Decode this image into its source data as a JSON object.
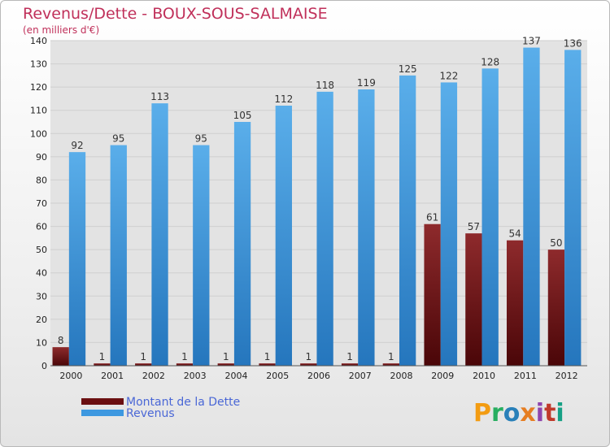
{
  "chart_data": {
    "type": "bar",
    "title": "Revenus/Dette - BOUX-SOUS-SALMAISE",
    "subtitle": "(en milliers d'€)",
    "categories": [
      "2000",
      "2001",
      "2002",
      "2003",
      "2004",
      "2005",
      "2006",
      "2007",
      "2008",
      "2009",
      "2010",
      "2011",
      "2012"
    ],
    "series": [
      {
        "name": "Montant de la Dette",
        "color": "#7b1416",
        "values": [
          8,
          1,
          1,
          1,
          1,
          1,
          1,
          1,
          1,
          61,
          57,
          54,
          50
        ]
      },
      {
        "name": "Revenus",
        "color": "#3d98e0",
        "values": [
          92,
          95,
          113,
          95,
          105,
          112,
          118,
          119,
          125,
          122,
          128,
          137,
          136
        ]
      }
    ],
    "ylim": [
      0,
      140
    ],
    "yticks": [
      0,
      10,
      20,
      30,
      40,
      50,
      60,
      70,
      80,
      90,
      100,
      110,
      120,
      130,
      140
    ],
    "grid": true,
    "legend": "bottom-left"
  },
  "brand": {
    "letters": [
      "P",
      "r",
      "o",
      "x",
      "i",
      "t",
      "i"
    ],
    "colors": [
      "#f39c12",
      "#27ae60",
      "#2980b9",
      "#e67e22",
      "#8e44ad",
      "#c0392b",
      "#16a085"
    ]
  }
}
